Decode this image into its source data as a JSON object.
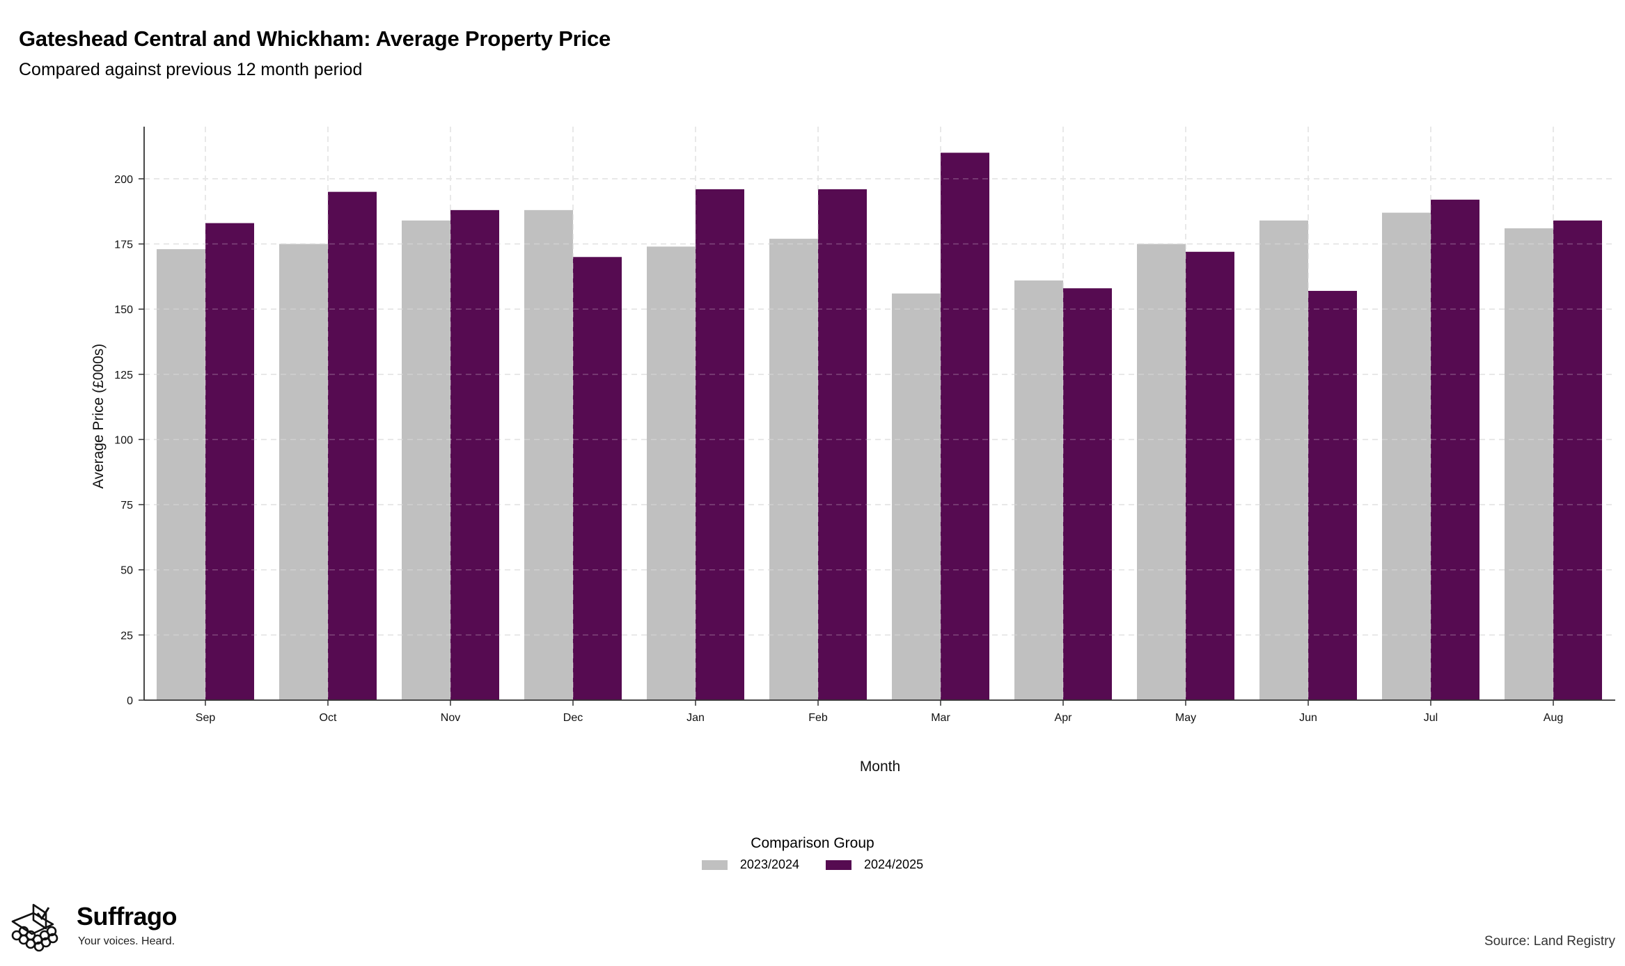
{
  "header": {
    "title": "Gateshead Central and Whickham: Average Property Price",
    "subtitle": "Compared against previous 12 month period"
  },
  "chart_data": {
    "type": "bar",
    "xlabel": "Month",
    "ylabel": "Average Price (£000s)",
    "ylim": [
      0,
      220
    ],
    "yticks": [
      0,
      25,
      50,
      75,
      100,
      125,
      150,
      175,
      200
    ],
    "grid": true,
    "legend_position": "bottom",
    "legend_title": "Comparison Group",
    "categories": [
      "Sep",
      "Oct",
      "Nov",
      "Dec",
      "Jan",
      "Feb",
      "Mar",
      "Apr",
      "May",
      "Jun",
      "Jul",
      "Aug"
    ],
    "series": [
      {
        "name": "2023/2024",
        "color": "#c0c0c0",
        "values": [
          173,
          175,
          184,
          188,
          174,
          177,
          156,
          161,
          175,
          184,
          187,
          181
        ]
      },
      {
        "name": "2024/2025",
        "color": "#560b51",
        "values": [
          183,
          195,
          188,
          170,
          196,
          196,
          210,
          158,
          172,
          157,
          192,
          184
        ]
      }
    ]
  },
  "footer": {
    "brand_name": "Suffrago",
    "brand_tagline": "Your voices. Heard.",
    "source": "Source: Land Registry"
  }
}
